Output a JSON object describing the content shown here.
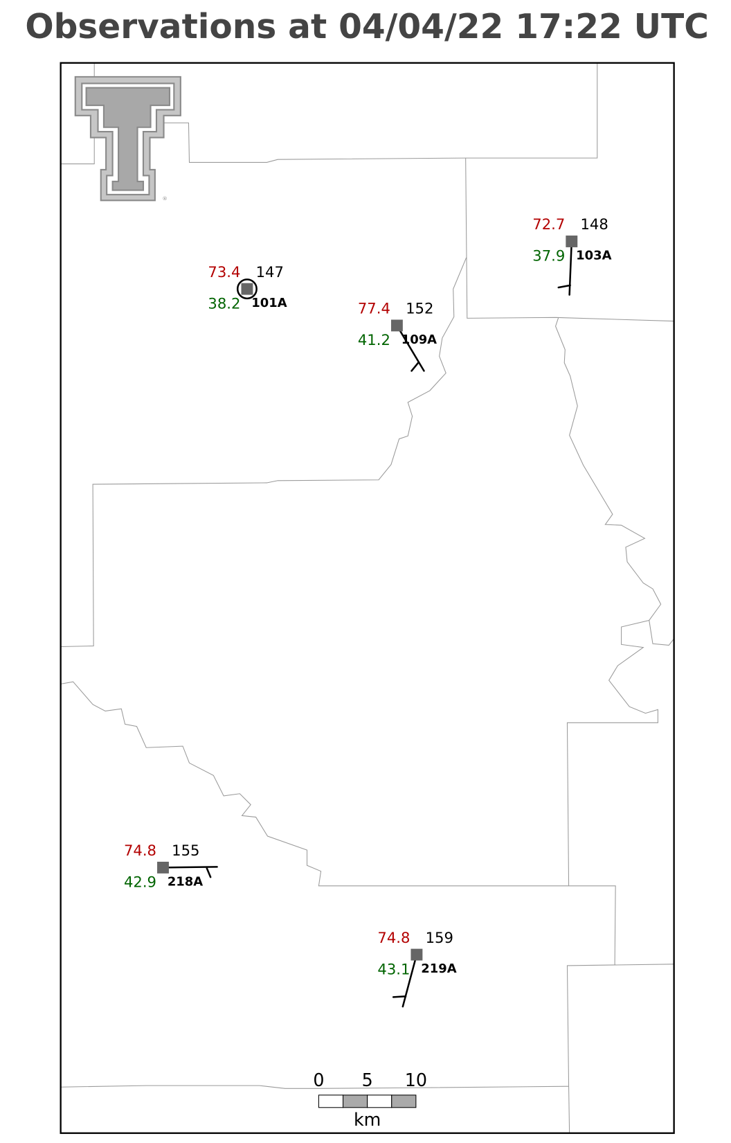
{
  "header": {
    "title": "Observations at 04/04/22 17:22 UTC"
  },
  "stations": [
    {
      "id": "101A",
      "temperature": "73.4",
      "dewpoint": "38.2",
      "pressure": "147"
    },
    {
      "id": "109A",
      "temperature": "77.4",
      "dewpoint": "41.2",
      "pressure": "152"
    },
    {
      "id": "103A",
      "temperature": "72.7",
      "dewpoint": "37.9",
      "pressure": "148"
    },
    {
      "id": "218A",
      "temperature": "74.8",
      "dewpoint": "42.9",
      "pressure": "155"
    },
    {
      "id": "219A",
      "temperature": "74.8",
      "dewpoint": "43.1",
      "pressure": "159"
    }
  ],
  "scale_bar": {
    "labels": [
      "0",
      "5",
      "10"
    ],
    "unit": "km"
  }
}
